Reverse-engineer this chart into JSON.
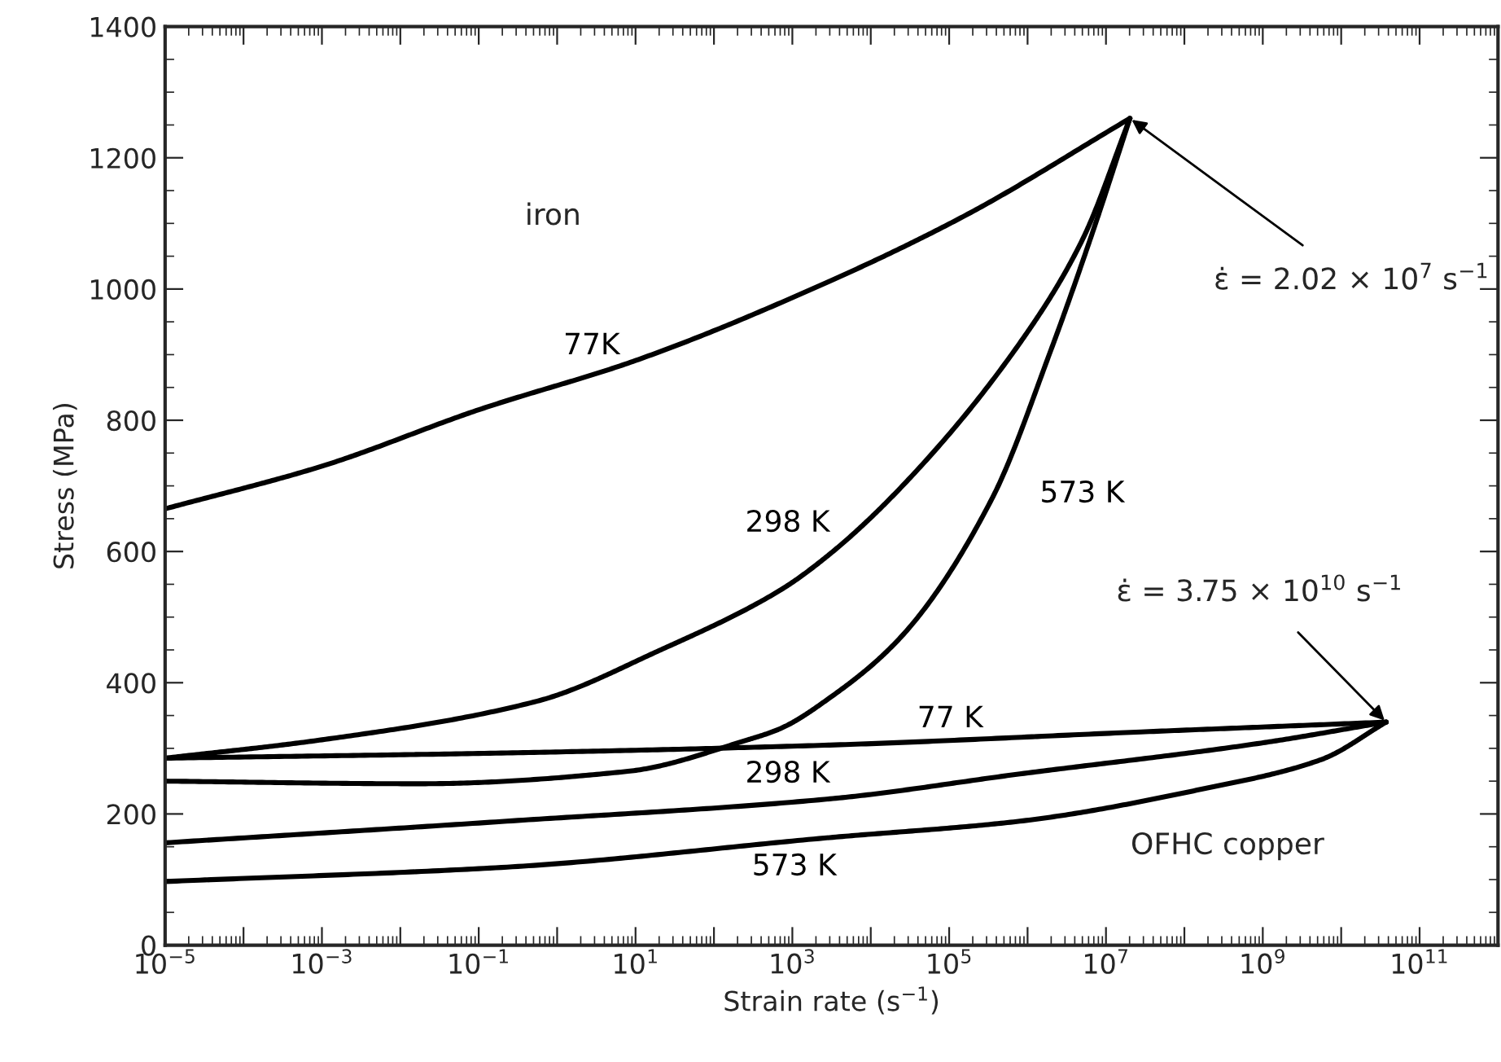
{
  "chart_data": {
    "type": "line",
    "xlabel": "Strain rate (s$^{−1}$)",
    "ylabel": "Stress (MPa)",
    "log": "x",
    "xlim": [
      1e-05,
      1000000000000.0
    ],
    "ylim": [
      0,
      1400
    ],
    "xticks": [
      {
        "value": 1e-05,
        "label": "10$^{−5}$"
      },
      {
        "value": 0.0001,
        "label": null
      },
      {
        "value": 0.001,
        "label": "10$^{−3}$"
      },
      {
        "value": 0.01,
        "label": null
      },
      {
        "value": 0.1,
        "label": "10$^{−1}$"
      },
      {
        "value": 1,
        "label": null
      },
      {
        "value": 10,
        "label": "10$^{1}$"
      },
      {
        "value": 100,
        "label": null
      },
      {
        "value": 1000,
        "label": "10$^{3}$"
      },
      {
        "value": 10000.0,
        "label": null
      },
      {
        "value": 100000.0,
        "label": "10$^{5}$"
      },
      {
        "value": 1000000.0,
        "label": null
      },
      {
        "value": 10000000.0,
        "label": "10$^{7}$"
      },
      {
        "value": 100000000.0,
        "label": null
      },
      {
        "value": 1000000000.0,
        "label": "10$^{9}$"
      },
      {
        "value": 10000000000.0,
        "label": null
      },
      {
        "value": 100000000000.0,
        "label": "10$^{11}$"
      }
    ],
    "yticks": [
      0,
      200,
      400,
      600,
      800,
      1000,
      1200,
      1400
    ],
    "grid": false,
    "legend": false,
    "marker": "none",
    "line_style": "solid",
    "series": [
      {
        "name": "77K",
        "color": "#000000",
        "x": [
          1e-05,
          0.001,
          0.1,
          10,
          3000,
          160000.0,
          20200000.0
        ],
        "values": [
          665,
          730,
          816,
          891,
          1012,
          1112,
          1260
        ]
      },
      {
        "name": "298 K",
        "color": "#000000",
        "x": [
          1e-05,
          0.001,
          0.56,
          20,
          700,
          3000,
          24000.0,
          800000.0,
          5000000.0,
          20200000.0
        ],
        "values": [
          285,
          313,
          372,
          449,
          541,
          596,
          697,
          918,
          1075,
          1260
        ]
      },
      {
        "name": "573 K",
        "color": "#000000",
        "x": [
          1e-05,
          0.017,
          8,
          270,
          700,
          3000,
          24000.0,
          350000.0,
          2000000.0,
          7000000.0,
          20200000.0
        ],
        "values": [
          250,
          246,
          265,
          313,
          330,
          377,
          469,
          680,
          908,
          1092,
          1260
        ]
      },
      {
        "name": "77 K",
        "color": "#000000",
        "x": [
          1e-05,
          0.23,
          3000,
          28000000.0,
          37500000000.0
        ],
        "values": [
          285,
          293,
          305,
          325,
          340
        ]
      },
      {
        "name": "298 K",
        "color": "#000000",
        "x": [
          1e-05,
          0.23,
          3000,
          800000.0,
          950000000.0,
          37500000000.0
        ],
        "values": [
          156,
          189,
          223,
          261,
          308,
          340
        ]
      },
      {
        "name": "573 K",
        "color": "#000000",
        "x": [
          1e-05,
          0.23,
          3000,
          800000.0,
          170000000.0,
          5600000000.0,
          37500000000.0
        ],
        "values": [
          97,
          119,
          164,
          189,
          238,
          283,
          340
        ]
      }
    ],
    "annotations": [
      "iron",
      "OFHC copper",
      {
        "text": "ε̇ = 2.02 × 10$^{7}$ s$^{−1}$",
        "x": 20200000.0,
        "y": 1260
      },
      {
        "text": "ε̇ = 3.75 × 10$^{10}$ s$^{−1}$",
        "x": 37500000000.0,
        "y": 340
      }
    ]
  }
}
